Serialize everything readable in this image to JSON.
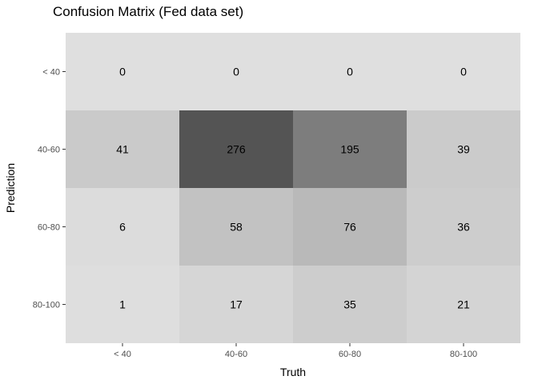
{
  "chart_data": {
    "type": "heatmap",
    "title": "Confusion Matrix (Fed data set)",
    "xlabel": "Truth",
    "ylabel": "Prediction",
    "x_categories": [
      "< 40",
      "40-60",
      "60-80",
      "80-100"
    ],
    "y_categories": [
      "< 40",
      "40-60",
      "60-80",
      "80-100"
    ],
    "values": [
      [
        0,
        0,
        0,
        0
      ],
      [
        41,
        276,
        195,
        39
      ],
      [
        6,
        58,
        76,
        36
      ],
      [
        1,
        17,
        35,
        21
      ]
    ],
    "color_low": "#dfdfdf",
    "color_high": "#545454",
    "value_range": [
      0,
      276
    ],
    "grid": false,
    "legend": "none"
  }
}
